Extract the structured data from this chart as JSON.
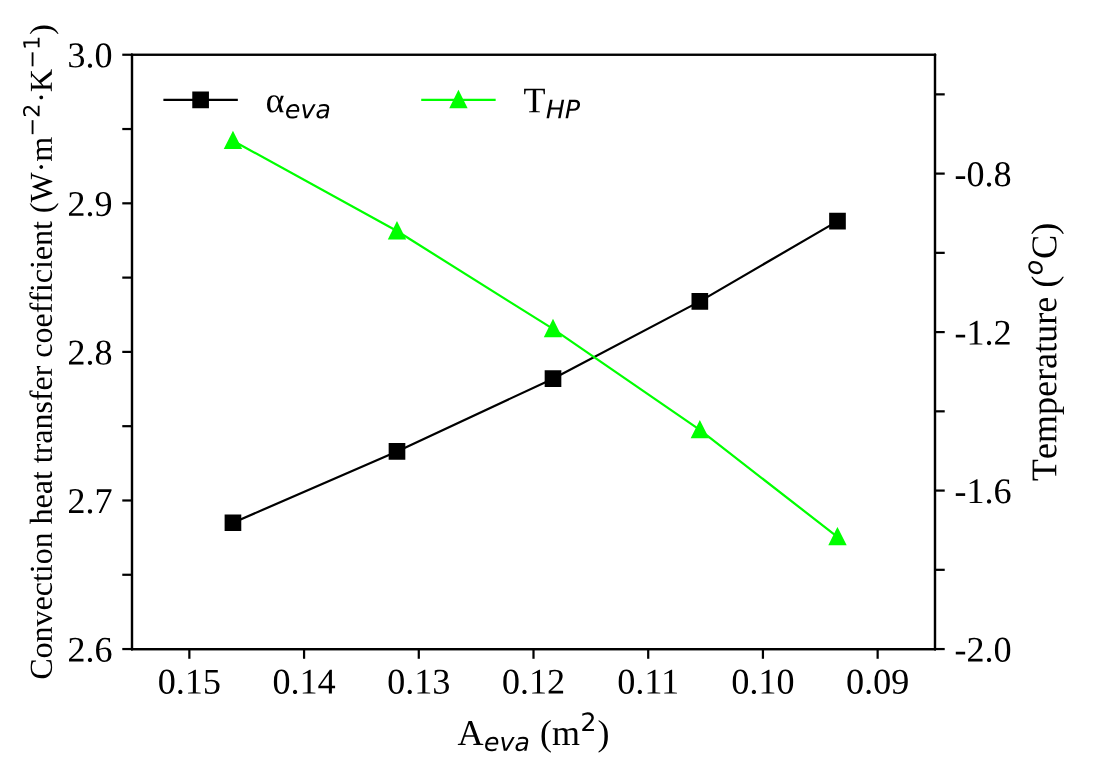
{
  "chart_data": {
    "type": "line",
    "xlabel": "A$_{eva}$ (m$^{2}$)",
    "ylabel": "Convection heat transfer coefficient (W·m$^{−2}$·K$^{−1}$)",
    "y2label": "Temperature ($^{o}$C)",
    "x": [
      0.1462,
      0.1319,
      0.1183,
      0.1055,
      0.0935
    ],
    "xlim": [
      0.155,
      0.085
    ],
    "xticks": [
      0.15,
      0.14,
      0.13,
      0.12,
      0.11,
      {
        "value": 0.1,
        "label": "0.10"
      },
      0.09
    ],
    "ylim": [
      2.6,
      3.0
    ],
    "yticks": [
      2.6,
      {
        "value": 2.65,
        "label": null
      },
      2.7,
      {
        "value": 2.75,
        "label": null
      },
      2.8,
      {
        "value": 2.85,
        "label": null
      },
      2.9,
      {
        "value": 2.95,
        "label": null
      },
      {
        "value": 3.0,
        "label": "3.0"
      }
    ],
    "y2lim": [
      -2.0,
      -0.5
    ],
    "y2ticks": [
      {
        "value": -2.0,
        "label": "-2.0"
      },
      {
        "value": -1.8,
        "label": null
      },
      -1.6,
      {
        "value": -1.4,
        "label": null
      },
      -1.2,
      {
        "value": -1.0,
        "label": null
      },
      -0.8,
      {
        "value": -0.6,
        "label": null
      }
    ],
    "series": [
      {
        "name": "α$_{eva}$",
        "color": "#000000",
        "marker": "square",
        "values": [
          2.685,
          2.733,
          2.782,
          2.834,
          2.888
        ]
      },
      {
        "name": "T$_{HP}$",
        "color": "#00ff00",
        "marker": "triangle",
        "axis": "y2",
        "values": [
          -0.717,
          -0.945,
          -1.192,
          -1.447,
          -1.717
        ]
      }
    ],
    "legend": "top left",
    "grid": false
  }
}
